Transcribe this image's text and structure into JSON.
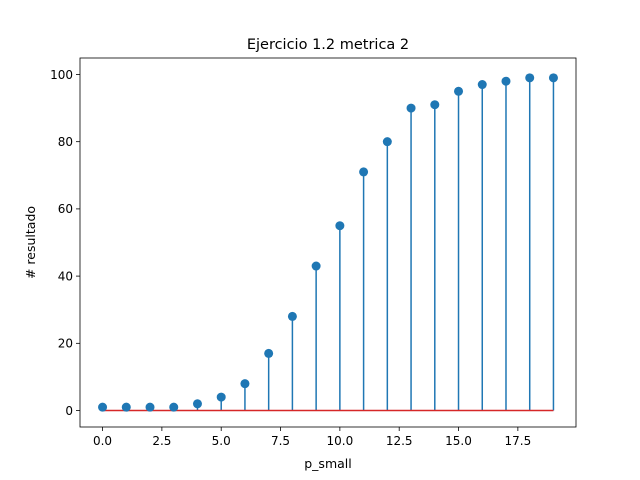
{
  "chart_data": {
    "type": "stem",
    "title": "Ejercicio 1.2 metrica 2",
    "xlabel": "p_small",
    "ylabel": "# resultado",
    "xlim": [
      -0.95,
      19.95
    ],
    "ylim": [
      -4.9,
      104.9
    ],
    "xticks": [
      0,
      2.5,
      5,
      7.5,
      10,
      12.5,
      15,
      17.5
    ],
    "xtick_labels": [
      "0.0",
      "2.5",
      "5.0",
      "7.5",
      "10.0",
      "12.5",
      "15.0",
      "17.5"
    ],
    "yticks": [
      0,
      20,
      40,
      60,
      80,
      100
    ],
    "ytick_labels": [
      "0",
      "20",
      "40",
      "60",
      "80",
      "100"
    ],
    "x": [
      0,
      1,
      2,
      3,
      4,
      5,
      6,
      7,
      8,
      9,
      10,
      11,
      12,
      13,
      14,
      15,
      16,
      17,
      18,
      19
    ],
    "y": [
      1,
      1,
      1,
      1,
      2,
      4,
      8,
      17,
      28,
      43,
      55,
      71,
      80,
      90,
      91,
      95,
      97,
      98,
      99,
      99
    ],
    "baseline": 0,
    "grid": false,
    "colors": {
      "stem": "#1f77b4",
      "marker": "#1f77b4",
      "baseline": "#d62728"
    }
  }
}
